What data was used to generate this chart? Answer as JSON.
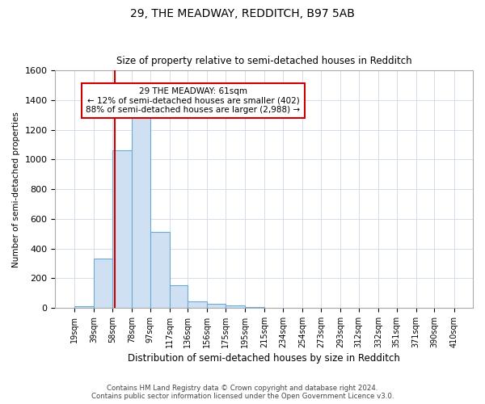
{
  "title1": "29, THE MEADWAY, REDDITCH, B97 5AB",
  "title2": "Size of property relative to semi-detached houses in Redditch",
  "xlabel": "Distribution of semi-detached houses by size in Redditch",
  "ylabel": "Number of semi-detached properties",
  "footer1": "Contains HM Land Registry data © Crown copyright and database right 2024.",
  "footer2": "Contains public sector information licensed under the Open Government Licence v3.0.",
  "annotation_title": "29 THE MEADWAY: 61sqm",
  "annotation_line1": "← 12% of semi-detached houses are smaller (402)",
  "annotation_line2": "88% of semi-detached houses are larger (2,988) →",
  "property_size": 61,
  "bin_edges": [
    19,
    39,
    58,
    78,
    97,
    117,
    136,
    156,
    175,
    195,
    215,
    234,
    254,
    273,
    293,
    312,
    332,
    351,
    371,
    390,
    410
  ],
  "bar_values": [
    10,
    330,
    1060,
    1290,
    510,
    150,
    45,
    25,
    15,
    5,
    0,
    0,
    0,
    0,
    0,
    0,
    0,
    0,
    0,
    0
  ],
  "bar_color": "#cfe0f3",
  "bar_edge_color": "#6aaad4",
  "vline_color": "#cc0000",
  "vline_x": 61,
  "ylim": [
    0,
    1600
  ],
  "yticks": [
    0,
    200,
    400,
    600,
    800,
    1000,
    1200,
    1400,
    1600
  ],
  "annotation_box_color": "#cc0000",
  "background_color": "#ffffff",
  "grid_color": "#d0d8e8"
}
